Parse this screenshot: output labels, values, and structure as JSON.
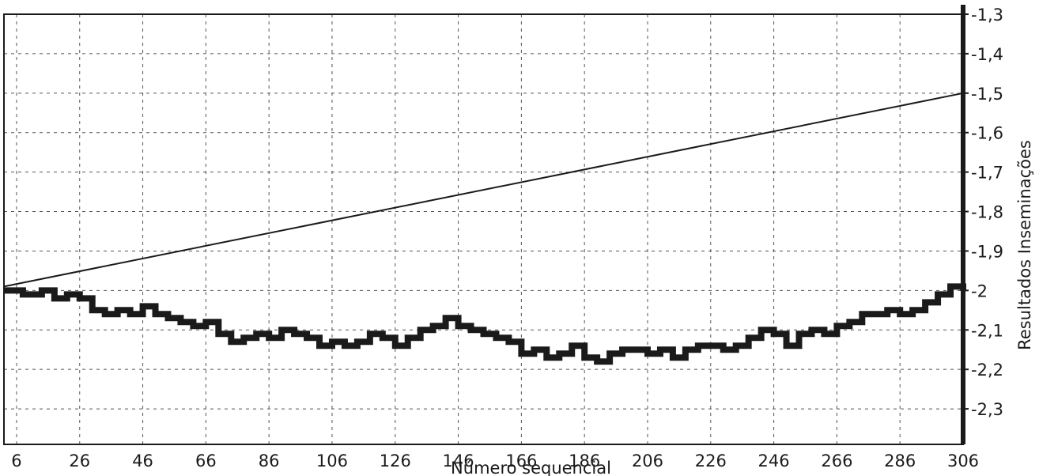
{
  "chart_data": {
    "type": "line",
    "title": "",
    "xlabel": "Número sequencial",
    "ylabel": "Resultados Inseminações",
    "xlim": [
      2,
      306
    ],
    "ylim": [
      -2.39,
      -1.3
    ],
    "grid": true,
    "y_axis_side": "right",
    "x_ticks": [
      6,
      26,
      46,
      66,
      86,
      106,
      126,
      146,
      166,
      186,
      206,
      226,
      246,
      266,
      286,
      306
    ],
    "y_ticks": [
      -1.3,
      -1.4,
      -1.5,
      -1.6,
      -1.7,
      -1.8,
      -1.9,
      -2,
      -2.1,
      -2.2,
      -2.3
    ],
    "y_tick_labels": [
      "-1,3",
      "-1,4",
      "-1,5",
      "-1,6",
      "-1,7",
      "-1,8",
      "-1,9",
      "-2",
      "-2,1",
      "-2,2",
      "-2,3"
    ],
    "series": [
      {
        "style": "thin-line",
        "color": "#1a1a1a",
        "x": [
          2,
          306
        ],
        "y": [
          -1.99,
          -1.5
        ]
      },
      {
        "style": "thick-step",
        "color": "#1a1a1a",
        "x": [
          2,
          8,
          14,
          18,
          22,
          26,
          30,
          34,
          38,
          42,
          46,
          50,
          54,
          58,
          62,
          66,
          70,
          74,
          78,
          82,
          86,
          90,
          94,
          98,
          102,
          106,
          110,
          114,
          118,
          122,
          126,
          130,
          134,
          138,
          142,
          146,
          150,
          154,
          158,
          162,
          166,
          170,
          174,
          178,
          182,
          186,
          190,
          194,
          198,
          202,
          206,
          210,
          214,
          218,
          222,
          226,
          230,
          234,
          238,
          242,
          246,
          250,
          254,
          258,
          262,
          266,
          270,
          274,
          278,
          282,
          286,
          290,
          294,
          298,
          302,
          306
        ],
        "y": [
          -2.0,
          -2.01,
          -2.0,
          -2.02,
          -2.01,
          -2.02,
          -2.05,
          -2.06,
          -2.05,
          -2.06,
          -2.04,
          -2.06,
          -2.07,
          -2.08,
          -2.09,
          -2.08,
          -2.11,
          -2.13,
          -2.12,
          -2.11,
          -2.12,
          -2.1,
          -2.11,
          -2.12,
          -2.14,
          -2.13,
          -2.14,
          -2.13,
          -2.11,
          -2.12,
          -2.14,
          -2.12,
          -2.1,
          -2.09,
          -2.07,
          -2.09,
          -2.1,
          -2.11,
          -2.12,
          -2.13,
          -2.16,
          -2.15,
          -2.17,
          -2.16,
          -2.14,
          -2.17,
          -2.18,
          -2.16,
          -2.15,
          -2.15,
          -2.16,
          -2.15,
          -2.17,
          -2.15,
          -2.14,
          -2.14,
          -2.15,
          -2.14,
          -2.12,
          -2.1,
          -2.11,
          -2.14,
          -2.11,
          -2.1,
          -2.11,
          -2.09,
          -2.08,
          -2.06,
          -2.06,
          -2.05,
          -2.06,
          -2.05,
          -2.03,
          -2.01,
          -1.99,
          -2.0
        ]
      }
    ]
  }
}
